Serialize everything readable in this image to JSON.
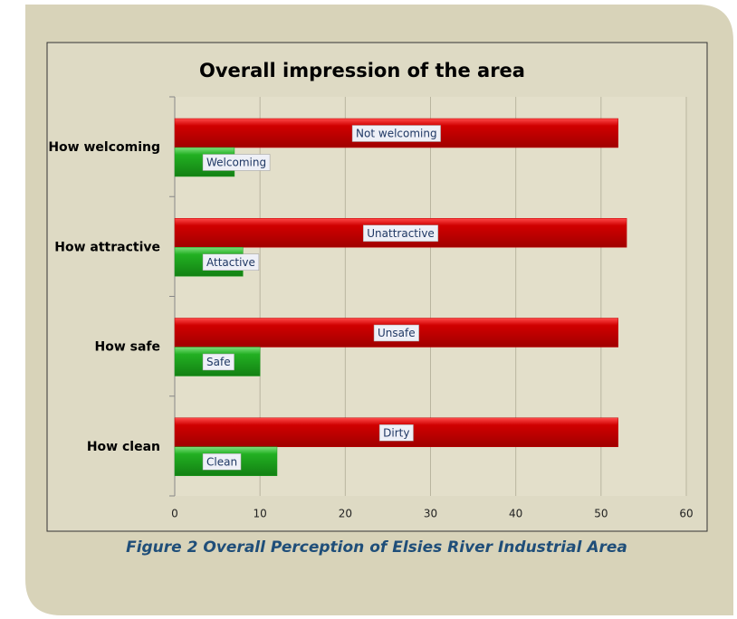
{
  "chart_data": {
    "type": "bar",
    "orientation": "horizontal",
    "title": "Overall impression of the area",
    "caption": "Figure 2 Overall Perception of Elsies River Industrial Area",
    "categories": [
      "How welcoming",
      "How attractive",
      "How safe",
      "How clean"
    ],
    "series": [
      {
        "color": "#c00000",
        "values": [
          52,
          53,
          52,
          52
        ],
        "labels": [
          "Not welcoming",
          "Unattractive",
          "Unsafe",
          "Dirty"
        ]
      },
      {
        "color": "#1e9e1e",
        "values": [
          7,
          8,
          10,
          12
        ],
        "labels": [
          "Welcoming",
          "Attactive",
          "Safe",
          "Clean"
        ]
      }
    ],
    "xlim": [
      0,
      60
    ],
    "xticks": [
      0,
      10,
      20,
      30,
      40,
      50,
      60
    ],
    "grid": true
  }
}
